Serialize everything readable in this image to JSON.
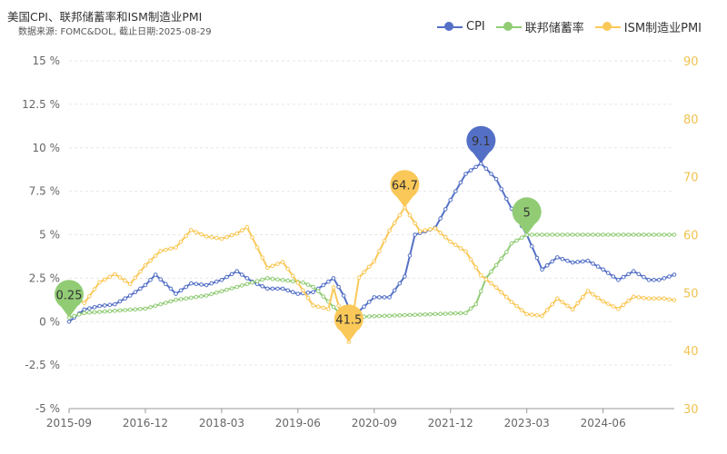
{
  "chart_data": {
    "type": "line",
    "title": "美国CPI、联邦储蓄率和ISM制造业PMI",
    "subtitle": "数据来源: FOMC&DOL, 截止日期:2025-08-29",
    "x_ticks": [
      "2015-09",
      "2016-12",
      "2018-03",
      "2019-06",
      "2020-09",
      "2021-12",
      "2023-03",
      "2024-06"
    ],
    "x_range": [
      "2015-09",
      "2025-08"
    ],
    "y_left_ticks": [
      "15 %",
      "12.5 %",
      "10 %",
      "7.5 %",
      "5 %",
      "2.5 %",
      "0 %",
      "-2.5 %",
      "-5 %"
    ],
    "y_left_range": [
      -5,
      15
    ],
    "y_right_ticks": [
      "90",
      "80",
      "70",
      "60",
      "50",
      "40",
      "30"
    ],
    "y_right_range": [
      30,
      90
    ],
    "legend_position": "top-right",
    "grid": "horizontal",
    "series": [
      {
        "name": "CPI",
        "axis": "left",
        "color": "#5470c6",
        "points": [
          [
            "2015-09",
            0.0
          ],
          [
            "2015-12",
            0.7
          ],
          [
            "2016-03",
            0.9
          ],
          [
            "2016-06",
            1.0
          ],
          [
            "2016-09",
            1.5
          ],
          [
            "2016-12",
            2.1
          ],
          [
            "2017-02",
            2.7
          ],
          [
            "2017-05",
            1.9
          ],
          [
            "2017-06",
            1.6
          ],
          [
            "2017-09",
            2.2
          ],
          [
            "2017-12",
            2.1
          ],
          [
            "2018-03",
            2.4
          ],
          [
            "2018-06",
            2.9
          ],
          [
            "2018-09",
            2.3
          ],
          [
            "2018-12",
            1.9
          ],
          [
            "2019-03",
            1.9
          ],
          [
            "2019-06",
            1.6
          ],
          [
            "2019-09",
            1.7
          ],
          [
            "2019-12",
            2.3
          ],
          [
            "2020-01",
            2.5
          ],
          [
            "2020-03",
            1.5
          ],
          [
            "2020-05",
            0.1
          ],
          [
            "2020-06",
            0.6
          ],
          [
            "2020-09",
            1.4
          ],
          [
            "2020-12",
            1.4
          ],
          [
            "2021-03",
            2.6
          ],
          [
            "2021-05",
            5.0
          ],
          [
            "2021-09",
            5.4
          ],
          [
            "2021-12",
            7.0
          ],
          [
            "2022-03",
            8.5
          ],
          [
            "2022-06",
            9.1
          ],
          [
            "2022-09",
            8.2
          ],
          [
            "2022-12",
            6.5
          ],
          [
            "2023-03",
            5.0
          ],
          [
            "2023-06",
            3.0
          ],
          [
            "2023-09",
            3.7
          ],
          [
            "2023-12",
            3.4
          ],
          [
            "2024-03",
            3.5
          ],
          [
            "2024-06",
            3.0
          ],
          [
            "2024-09",
            2.4
          ],
          [
            "2024-12",
            2.9
          ],
          [
            "2025-03",
            2.4
          ],
          [
            "2025-05",
            2.4
          ],
          [
            "2025-08",
            2.7
          ]
        ]
      },
      {
        "name": "联邦储蓄率",
        "axis": "left",
        "color": "#91cc75",
        "points": [
          [
            "2015-09",
            0.25
          ],
          [
            "2015-12",
            0.5
          ],
          [
            "2016-12",
            0.75
          ],
          [
            "2017-03",
            1.0
          ],
          [
            "2017-06",
            1.25
          ],
          [
            "2017-12",
            1.5
          ],
          [
            "2018-03",
            1.75
          ],
          [
            "2018-06",
            2.0
          ],
          [
            "2018-09",
            2.25
          ],
          [
            "2018-12",
            2.5
          ],
          [
            "2019-07",
            2.25
          ],
          [
            "2019-09",
            2.0
          ],
          [
            "2019-10",
            1.75
          ],
          [
            "2020-03",
            0.25
          ],
          [
            "2022-03",
            0.5
          ],
          [
            "2022-05",
            1.0
          ],
          [
            "2022-06",
            1.75
          ],
          [
            "2022-07",
            2.5
          ],
          [
            "2022-09",
            3.25
          ],
          [
            "2022-11",
            4.0
          ],
          [
            "2022-12",
            4.5
          ],
          [
            "2023-03",
            5.0
          ],
          [
            "2023-07",
            5.0
          ],
          [
            "2024-09",
            5.0
          ],
          [
            "2025-08",
            5.0
          ]
        ]
      },
      {
        "name": "ISM制造业PMI",
        "axis": "right",
        "color": "#fac858",
        "points": [
          [
            "2015-09",
            50.2
          ],
          [
            "2015-12",
            48.2
          ],
          [
            "2016-03",
            51.8
          ],
          [
            "2016-06",
            53.2
          ],
          [
            "2016-09",
            51.5
          ],
          [
            "2016-12",
            54.7
          ],
          [
            "2017-03",
            57.2
          ],
          [
            "2017-06",
            57.8
          ],
          [
            "2017-09",
            60.8
          ],
          [
            "2017-12",
            59.7
          ],
          [
            "2018-03",
            59.3
          ],
          [
            "2018-06",
            60.2
          ],
          [
            "2018-08",
            61.3
          ],
          [
            "2018-12",
            54.3
          ],
          [
            "2019-03",
            55.3
          ],
          [
            "2019-06",
            51.7
          ],
          [
            "2019-09",
            47.8
          ],
          [
            "2019-12",
            47.2
          ],
          [
            "2020-01",
            50.9
          ],
          [
            "2020-04",
            41.5
          ],
          [
            "2020-06",
            52.6
          ],
          [
            "2020-09",
            55.4
          ],
          [
            "2020-12",
            60.7
          ],
          [
            "2021-03",
            64.7
          ],
          [
            "2021-06",
            60.6
          ],
          [
            "2021-09",
            61.1
          ],
          [
            "2021-12",
            58.8
          ],
          [
            "2022-03",
            57.1
          ],
          [
            "2022-06",
            53.0
          ],
          [
            "2022-09",
            50.9
          ],
          [
            "2022-12",
            48.4
          ],
          [
            "2023-03",
            46.3
          ],
          [
            "2023-06",
            46.0
          ],
          [
            "2023-09",
            49.0
          ],
          [
            "2023-12",
            47.1
          ],
          [
            "2024-03",
            50.3
          ],
          [
            "2024-06",
            48.5
          ],
          [
            "2024-09",
            47.2
          ],
          [
            "2024-12",
            49.3
          ],
          [
            "2025-03",
            49.0
          ],
          [
            "2025-06",
            49.0
          ],
          [
            "2025-08",
            48.7
          ]
        ]
      }
    ],
    "markers": [
      {
        "series": "CPI",
        "date": "2022-06",
        "value": 9.1,
        "label": "9.1",
        "axis": "left",
        "color": "#5470c6"
      },
      {
        "series": "联邦储蓄率",
        "date": "2023-03",
        "value": 5.0,
        "label": "5",
        "axis": "left",
        "color": "#91cc75"
      },
      {
        "series": "联邦储蓄率",
        "date": "2015-09",
        "value": 0.25,
        "label": "0.25",
        "axis": "left",
        "color": "#91cc75"
      },
      {
        "series": "ISM制造业PMI",
        "date": "2021-03",
        "value": 64.7,
        "label": "64.7",
        "axis": "right",
        "color": "#fac858"
      },
      {
        "series": "ISM制造业PMI",
        "date": "2020-04",
        "value": 41.5,
        "label": "41.5",
        "axis": "right",
        "color": "#fac858"
      }
    ]
  }
}
